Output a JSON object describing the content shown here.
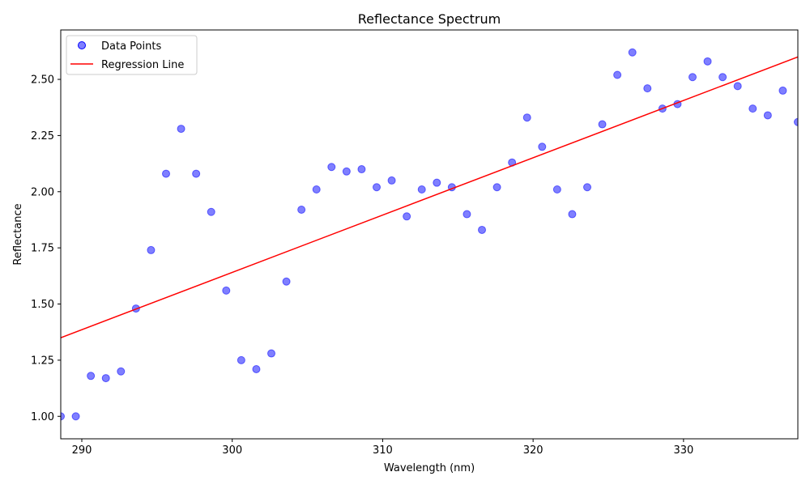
{
  "chart_data": {
    "type": "scatter",
    "title": "Reflectance Spectrum",
    "xlabel": "Wavelength (nm)",
    "ylabel": "Reflectance",
    "xlim": [
      288.6,
      337.6
    ],
    "ylim": [
      0.9,
      2.72
    ],
    "xticks": [
      {
        "value": 290,
        "label": "290"
      },
      {
        "value": 300,
        "label": "300"
      },
      {
        "value": 310,
        "label": "310"
      },
      {
        "value": 320,
        "label": "320"
      },
      {
        "value": 330,
        "label": "330"
      }
    ],
    "yticks": [
      {
        "value": 1.0,
        "label": "1.00"
      },
      {
        "value": 1.25,
        "label": "1.25"
      },
      {
        "value": 1.5,
        "label": "1.50"
      },
      {
        "value": 1.75,
        "label": "1.75"
      },
      {
        "value": 2.0,
        "label": "2.00"
      },
      {
        "value": 2.25,
        "label": "2.25"
      },
      {
        "value": 2.5,
        "label": "2.50"
      }
    ],
    "grid": false,
    "legend_position": "top-left",
    "series": [
      {
        "name": "Data Points",
        "kind": "scatter",
        "color": "#0000ff",
        "x": [
          288.6,
          289.6,
          290.6,
          291.6,
          292.6,
          293.6,
          294.6,
          295.6,
          296.6,
          297.6,
          298.6,
          299.6,
          300.6,
          301.6,
          302.6,
          303.6,
          304.6,
          305.6,
          306.6,
          307.6,
          308.6,
          309.6,
          310.6,
          311.6,
          312.6,
          313.6,
          314.6,
          315.6,
          316.6,
          317.6,
          318.6,
          319.6,
          320.6,
          321.6,
          322.6,
          323.6,
          324.6,
          325.6,
          326.6,
          327.6,
          328.6,
          329.6,
          330.6,
          331.6,
          332.6,
          333.6,
          334.6,
          335.6,
          336.6,
          337.6
        ],
        "y": [
          1.0,
          1.0,
          1.18,
          1.17,
          1.2,
          1.48,
          1.74,
          2.08,
          2.28,
          2.08,
          1.91,
          1.56,
          1.25,
          1.21,
          1.28,
          1.6,
          1.92,
          2.01,
          2.11,
          2.09,
          2.1,
          2.02,
          2.05,
          1.89,
          2.01,
          2.04,
          2.02,
          1.9,
          1.83,
          2.02,
          2.13,
          2.33,
          2.2,
          2.01,
          1.9,
          2.02,
          2.3,
          2.52,
          2.62,
          2.46,
          2.37,
          2.39,
          2.51,
          2.58,
          2.51,
          2.47,
          2.37,
          2.34,
          2.45,
          2.31
        ]
      },
      {
        "name": "Regression Line",
        "kind": "line",
        "color": "#ff0000",
        "x": [
          288.6,
          337.6
        ],
        "y": [
          1.35,
          2.6
        ]
      }
    ]
  }
}
